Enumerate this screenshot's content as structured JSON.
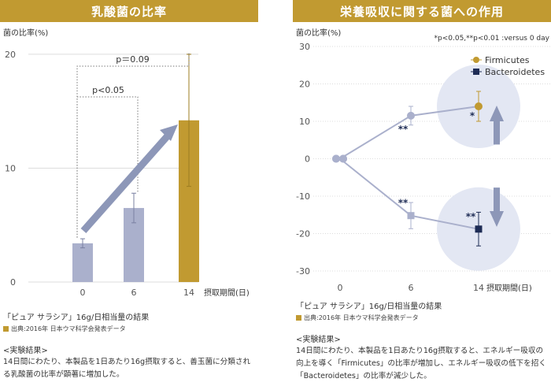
{
  "colors": {
    "gold": "#c19a31",
    "lavender": "#aab0cc",
    "navy": "#1e2c55",
    "arrow": "#8d97b8",
    "circle": "#e3e7f3",
    "grid": "#dddddd"
  },
  "left": {
    "banner": "乳酸菌の比率",
    "caption": "「ピュア サラシア」16g/日相当量の結果",
    "source": "出典:2016年 日本ウマ科学会発表データ",
    "result_heading": "<実験結果>",
    "result_text": "14日間にわたり、本製品を1日あたり16g摂取すると、善玉菌に分類される乳酸菌の比率が顕著に増加した。"
  },
  "right": {
    "banner": "栄養吸収に関する菌への作用",
    "caption": "「ピュア サラシア」16g/日相当量の結果",
    "source": "出典:2016年 日本ウマ科学会発表データ",
    "result_heading": "<実験結果>",
    "result_text": "14日間にわたり、本製品を1日あたり16g摂取すると、エネルギー吸収の向上を導く「Firmicutes」の比率が増加し、エネルギー吸収の低下を招く「Bacteroidetes」の比率が減少した。"
  },
  "chart_data": [
    {
      "type": "bar",
      "title": "乳酸菌の比率",
      "ylabel": "菌の比率(%)",
      "xlabel": "摂取期間(日)",
      "categories": [
        "0",
        "6",
        "14"
      ],
      "values": [
        3.4,
        6.5,
        14.2
      ],
      "errors": [
        0.4,
        1.3,
        5.8
      ],
      "ylim": [
        0,
        22
      ],
      "yticks": [
        "0",
        "10",
        "20"
      ],
      "annotations": [
        "p<0.05",
        "p＝0.09"
      ],
      "grid": true
    },
    {
      "type": "line",
      "title": "栄養吸収に関する菌への作用",
      "ylabel": "菌の比率(%)",
      "xlabel": "摂取期間(日)",
      "x": [
        "0",
        "6",
        "14"
      ],
      "ylim": [
        -30,
        30
      ],
      "yticks": [
        "30",
        "20",
        "10",
        "0",
        "-10",
        "-20",
        "-30"
      ],
      "legend": "top-right",
      "note": "*p<0.05,**p<0.01 :versus 0 day",
      "series": [
        {
          "name": "Firmicutes",
          "values": [
            0,
            11.5,
            14
          ],
          "errors": [
            0,
            2.5,
            4
          ],
          "markers": [
            "",
            "**",
            "*"
          ]
        },
        {
          "name": "Bacteroidetes",
          "values": [
            0,
            -15.2,
            -18.8
          ],
          "errors": [
            0,
            3.5,
            4.5
          ],
          "markers": [
            "",
            "**",
            "**"
          ]
        }
      ],
      "grid": true
    }
  ]
}
